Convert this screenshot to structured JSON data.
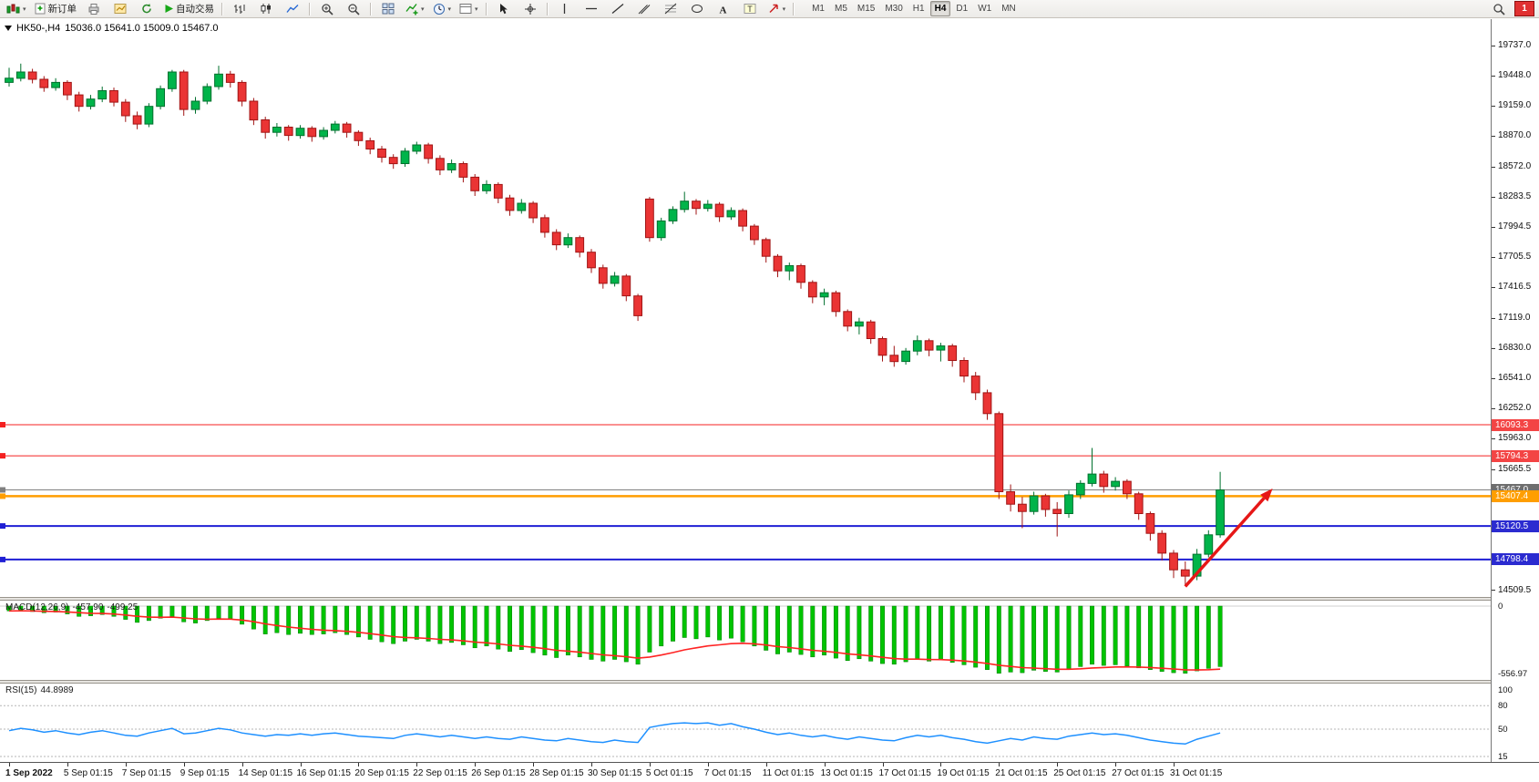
{
  "app": {
    "alert_badge": "1"
  },
  "toolbar": {
    "buttons": [
      {
        "name": "new-chart-button",
        "icon": "candles-plus-icon",
        "caret": true
      },
      {
        "name": "new-order-button",
        "icon": "order-ticket-icon",
        "label": "新订单"
      },
      {
        "name": "print-button",
        "icon": "printer-icon"
      },
      {
        "name": "chart-profile-button",
        "icon": "profile-icon"
      },
      {
        "name": "refresh-button",
        "icon": "refresh-icon"
      },
      {
        "name": "autotrading-button",
        "icon": "play-icon",
        "label": "自动交易"
      },
      {
        "sep": true
      },
      {
        "name": "bar-chart-button",
        "icon": "bar-chart-icon"
      },
      {
        "name": "candlestick-button",
        "icon": "candlestick-icon"
      },
      {
        "name": "line-chart-button",
        "icon": "line-chart-icon"
      },
      {
        "sep": true
      },
      {
        "name": "zoom-in-button",
        "icon": "zoom-in-icon"
      },
      {
        "name": "zoom-out-button",
        "icon": "zoom-out-icon"
      },
      {
        "sep": true
      },
      {
        "name": "tile-windows-button",
        "icon": "tile-icon"
      },
      {
        "name": "indicators-button",
        "icon": "indicator-plus-icon",
        "caret": true
      },
      {
        "name": "periods-button",
        "icon": "clock-icon",
        "caret": true
      },
      {
        "name": "templates-button",
        "icon": "template-icon",
        "caret": true
      },
      {
        "sep": true
      },
      {
        "name": "cursor-button",
        "icon": "cursor-icon"
      },
      {
        "name": "crosshair-button",
        "icon": "crosshair-icon"
      },
      {
        "sep": true
      },
      {
        "name": "vertical-line-button",
        "icon": "vline-icon"
      },
      {
        "name": "horizontal-line-button",
        "icon": "hline-icon"
      },
      {
        "name": "trendline-button",
        "icon": "trendline-icon"
      },
      {
        "name": "channel-button",
        "icon": "channel-icon"
      },
      {
        "name": "fibonacci-button",
        "icon": "fibonacci-icon"
      },
      {
        "name": "shapes-button",
        "icon": "shapes-icon"
      },
      {
        "name": "text-button",
        "icon": "text-a-icon"
      },
      {
        "name": "text-label-button",
        "icon": "text-label-icon"
      },
      {
        "name": "arrows-button",
        "icon": "arrow-tool-icon",
        "caret": true
      },
      {
        "sep": true
      }
    ],
    "timeframes": [
      "M1",
      "M5",
      "M15",
      "M30",
      "H1",
      "H4",
      "D1",
      "W1",
      "MN"
    ],
    "active_timeframe": "H4",
    "right_buttons": [
      {
        "name": "search-button",
        "icon": "search-icon"
      }
    ]
  },
  "chart": {
    "symbol_period": "HK50-,H4",
    "ohlc_text": "15036.0 15641.0 15009.0 15467.0"
  },
  "price_axis": {
    "ticks": [
      19737.0,
      19448.0,
      19159.0,
      18870.0,
      18572.0,
      18283.5,
      17994.5,
      17705.5,
      17416.5,
      17119.0,
      16830.0,
      16541.0,
      16252.0,
      15963.0,
      15665.5,
      14509.5
    ],
    "levels": [
      {
        "name": "resistance-1",
        "price": 16093.3,
        "label": "16093.3",
        "line": "#f42020",
        "box": "#f34444",
        "width": 1
      },
      {
        "name": "resistance-2",
        "price": 15794.3,
        "label": "15794.3",
        "line": "#f42020",
        "box": "#f34444",
        "width": 1
      },
      {
        "name": "current-price",
        "price": 15467.0,
        "label": "15467.0",
        "line": "#808080",
        "box": "#6e6e6e",
        "width": 1
      },
      {
        "name": "pivot-line",
        "price": 15407.4,
        "label": "15407.4",
        "line": "#ff9e00",
        "box": "#ff9e00",
        "width": 2.5
      },
      {
        "name": "support-1",
        "price": 15120.5,
        "label": "15120.5",
        "line": "#1f1fd4",
        "box": "#2b2bd0",
        "width": 2
      },
      {
        "name": "support-2",
        "price": 14798.4,
        "label": "14798.4",
        "line": "#1f1fd4",
        "box": "#2b2bd0",
        "width": 2
      }
    ]
  },
  "time_axis": [
    "1 Sep 2022",
    "5 Sep 01:15",
    "7 Sep 01:15",
    "9 Sep 01:15",
    "14 Sep 01:15",
    "16 Sep 01:15",
    "20 Sep 01:15",
    "22 Sep 01:15",
    "26 Sep 01:15",
    "28 Sep 01:15",
    "30 Sep 01:15",
    "5 Oct 01:15",
    "7 Oct 01:15",
    "11 Oct 01:15",
    "13 Oct 01:15",
    "17 Oct 01:15",
    "19 Oct 01:15",
    "21 Oct 01:15",
    "25 Oct 01:15",
    "27 Oct 01:15",
    "31 Oct 01:15"
  ],
  "macd_panel": {
    "label": "MACD(12,26,9)",
    "value_main": "-457.90",
    "value_signal": "-499.25",
    "scale_top": "0",
    "scale_bottom": "-556.97"
  },
  "rsi_panel": {
    "label": "RSI(15)",
    "value": "44.8989",
    "scale": [
      "100",
      "80",
      "50",
      "15"
    ]
  },
  "chart_data": {
    "type": "candlestick",
    "symbol": "HK50-",
    "period": "H4",
    "title": "HK50-,H4 15036.0 15641.0 15009.0 15467.0",
    "ylim": [
      14439,
      19987
    ],
    "up_color": "#00b44a",
    "down_color": "#ea3434",
    "up_stroke": "#00702e",
    "down_stroke": "#a01515",
    "candles": [
      [
        19380,
        19520,
        19340,
        19420
      ],
      [
        19420,
        19560,
        19390,
        19480
      ],
      [
        19480,
        19510,
        19370,
        19410
      ],
      [
        19410,
        19440,
        19290,
        19330
      ],
      [
        19330,
        19420,
        19300,
        19380
      ],
      [
        19380,
        19400,
        19210,
        19260
      ],
      [
        19260,
        19290,
        19100,
        19150
      ],
      [
        19150,
        19260,
        19120,
        19220
      ],
      [
        19220,
        19340,
        19190,
        19300
      ],
      [
        19300,
        19330,
        19150,
        19190
      ],
      [
        19190,
        19220,
        19000,
        19060
      ],
      [
        19060,
        19100,
        18930,
        18980
      ],
      [
        18980,
        19180,
        18950,
        19150
      ],
      [
        19150,
        19350,
        19120,
        19320
      ],
      [
        19320,
        19500,
        19290,
        19480
      ],
      [
        19480,
        19500,
        19060,
        19120
      ],
      [
        19120,
        19240,
        19080,
        19200
      ],
      [
        19200,
        19370,
        19170,
        19340
      ],
      [
        19340,
        19540,
        19310,
        19460
      ],
      [
        19460,
        19490,
        19330,
        19380
      ],
      [
        19380,
        19400,
        19150,
        19200
      ],
      [
        19200,
        19230,
        18970,
        19020
      ],
      [
        19020,
        19050,
        18840,
        18900
      ],
      [
        18900,
        18990,
        18860,
        18950
      ],
      [
        18950,
        18970,
        18820,
        18870
      ],
      [
        18870,
        18970,
        18840,
        18940
      ],
      [
        18940,
        18960,
        18810,
        18860
      ],
      [
        18860,
        18950,
        18830,
        18920
      ],
      [
        18920,
        19010,
        18890,
        18980
      ],
      [
        18980,
        19000,
        18850,
        18900
      ],
      [
        18900,
        18920,
        18770,
        18820
      ],
      [
        18820,
        18850,
        18690,
        18740
      ],
      [
        18740,
        18770,
        18610,
        18660
      ],
      [
        18660,
        18690,
        18550,
        18600
      ],
      [
        18600,
        18750,
        18570,
        18720
      ],
      [
        18720,
        18810,
        18690,
        18780
      ],
      [
        18780,
        18800,
        18600,
        18650
      ],
      [
        18650,
        18680,
        18490,
        18540
      ],
      [
        18540,
        18640,
        18510,
        18600
      ],
      [
        18600,
        18620,
        18420,
        18470
      ],
      [
        18470,
        18500,
        18290,
        18340
      ],
      [
        18340,
        18440,
        18310,
        18400
      ],
      [
        18400,
        18420,
        18220,
        18270
      ],
      [
        18270,
        18300,
        18100,
        18150
      ],
      [
        18150,
        18260,
        18120,
        18220
      ],
      [
        18220,
        18240,
        18030,
        18080
      ],
      [
        18080,
        18110,
        17890,
        17940
      ],
      [
        17940,
        17970,
        17770,
        17820
      ],
      [
        17820,
        17930,
        17790,
        17890
      ],
      [
        17890,
        17910,
        17700,
        17750
      ],
      [
        17750,
        17780,
        17550,
        17600
      ],
      [
        17600,
        17630,
        17400,
        17450
      ],
      [
        17450,
        17560,
        17420,
        17520
      ],
      [
        17520,
        17540,
        17280,
        17330
      ],
      [
        17330,
        17350,
        17090,
        17140
      ],
      [
        18260,
        18280,
        17850,
        17890
      ],
      [
        17890,
        18080,
        17860,
        18050
      ],
      [
        18050,
        18190,
        18020,
        18160
      ],
      [
        18160,
        18330,
        18130,
        18240
      ],
      [
        18240,
        18260,
        18110,
        18170
      ],
      [
        18170,
        18250,
        18140,
        18210
      ],
      [
        18210,
        18230,
        18040,
        18090
      ],
      [
        18090,
        18180,
        18060,
        18150
      ],
      [
        18150,
        18170,
        17950,
        18000
      ],
      [
        18000,
        18020,
        17820,
        17870
      ],
      [
        17870,
        17890,
        17650,
        17710
      ],
      [
        17710,
        17730,
        17510,
        17570
      ],
      [
        17570,
        17650,
        17480,
        17620
      ],
      [
        17620,
        17640,
        17400,
        17460
      ],
      [
        17460,
        17480,
        17260,
        17320
      ],
      [
        17320,
        17400,
        17240,
        17360
      ],
      [
        17360,
        17380,
        17130,
        17180
      ],
      [
        17180,
        17200,
        16990,
        17040
      ],
      [
        17040,
        17120,
        16960,
        17080
      ],
      [
        17080,
        17100,
        16870,
        16920
      ],
      [
        16920,
        16940,
        16700,
        16760
      ],
      [
        16760,
        16850,
        16650,
        16700
      ],
      [
        16700,
        16830,
        16670,
        16800
      ],
      [
        16800,
        16950,
        16760,
        16900
      ],
      [
        16900,
        16920,
        16750,
        16810
      ],
      [
        16810,
        16880,
        16700,
        16850
      ],
      [
        16850,
        16870,
        16650,
        16710
      ],
      [
        16710,
        16740,
        16500,
        16560
      ],
      [
        16560,
        16600,
        16330,
        16400
      ],
      [
        16400,
        16430,
        16140,
        16200
      ],
      [
        16200,
        16220,
        15380,
        15450
      ],
      [
        15450,
        15520,
        15260,
        15330
      ],
      [
        15330,
        15400,
        15100,
        15260
      ],
      [
        15260,
        15450,
        15230,
        15410
      ],
      [
        15410,
        15430,
        15210,
        15280
      ],
      [
        15280,
        15350,
        15020,
        15240
      ],
      [
        15240,
        15460,
        15200,
        15420
      ],
      [
        15420,
        15560,
        15380,
        15530
      ],
      [
        15530,
        15870,
        15500,
        15620
      ],
      [
        15620,
        15650,
        15440,
        15500
      ],
      [
        15500,
        15590,
        15460,
        15550
      ],
      [
        15550,
        15570,
        15380,
        15430
      ],
      [
        15430,
        15450,
        15180,
        15240
      ],
      [
        15240,
        15260,
        14980,
        15050
      ],
      [
        15050,
        15080,
        14790,
        14860
      ],
      [
        14860,
        14890,
        14620,
        14700
      ],
      [
        14700,
        14780,
        14550,
        14640
      ],
      [
        14640,
        14900,
        14600,
        14850
      ],
      [
        14850,
        15080,
        14820,
        15036
      ],
      [
        15036,
        15641,
        15009,
        15467
      ]
    ],
    "indicators": {
      "macd": {
        "params": "12,26,9",
        "main_last": -457.9,
        "signal_last": -499.25,
        "range": [
          -556.97,
          0
        ],
        "histogram": [
          -40,
          -35,
          -45,
          -55,
          -50,
          -65,
          -85,
          -80,
          -70,
          -85,
          -110,
          -135,
          -120,
          -100,
          -85,
          -130,
          -140,
          -120,
          -100,
          -110,
          -150,
          -190,
          -230,
          -220,
          -235,
          -225,
          -235,
          -230,
          -220,
          -235,
          -255,
          -275,
          -295,
          -310,
          -290,
          -275,
          -290,
          -310,
          -300,
          -320,
          -345,
          -330,
          -355,
          -375,
          -360,
          -385,
          -405,
          -425,
          -405,
          -420,
          -440,
          -455,
          -440,
          -460,
          -480,
          -380,
          -330,
          -290,
          -260,
          -270,
          -255,
          -280,
          -265,
          -295,
          -330,
          -365,
          -395,
          -380,
          -400,
          -420,
          -405,
          -430,
          -450,
          -435,
          -455,
          -475,
          -480,
          -460,
          -440,
          -455,
          -445,
          -465,
          -485,
          -505,
          -525,
          -555,
          -545,
          -550,
          -530,
          -540,
          -545,
          -520,
          -500,
          -480,
          -490,
          -485,
          -495,
          -510,
          -525,
          -540,
          -550,
          -555,
          -535,
          -515,
          -500
        ]
      },
      "rsi": {
        "params": "15",
        "last": 44.8989,
        "levels": [
          80,
          50,
          15
        ],
        "values": [
          48,
          51,
          49,
          46,
          48,
          45,
          43,
          46,
          48,
          45,
          42,
          41,
          45,
          48,
          51,
          44,
          45,
          48,
          51,
          49,
          45,
          43,
          41,
          43,
          42,
          44,
          42,
          44,
          45,
          43,
          41,
          40,
          39,
          38,
          42,
          44,
          42,
          40,
          42,
          40,
          38,
          40,
          38,
          37,
          40,
          38,
          36,
          35,
          38,
          36,
          34,
          33,
          36,
          34,
          33,
          52,
          55,
          57,
          58,
          57,
          58,
          55,
          57,
          53,
          50,
          46,
          43,
          45,
          42,
          40,
          42,
          39,
          37,
          40,
          38,
          36,
          35,
          39,
          42,
          40,
          42,
          39,
          37,
          34,
          32,
          35,
          38,
          36,
          40,
          38,
          37,
          41,
          43,
          45,
          43,
          44,
          42,
          39,
          36,
          34,
          32,
          31,
          37,
          41,
          45
        ]
      }
    },
    "annotations": [
      {
        "type": "arrow",
        "color": "#e61717",
        "from": {
          "index": 101,
          "price": 14540
        },
        "to": {
          "index": 108.5,
          "price": 15480
        },
        "note": "bullish breakout arrow"
      }
    ]
  }
}
